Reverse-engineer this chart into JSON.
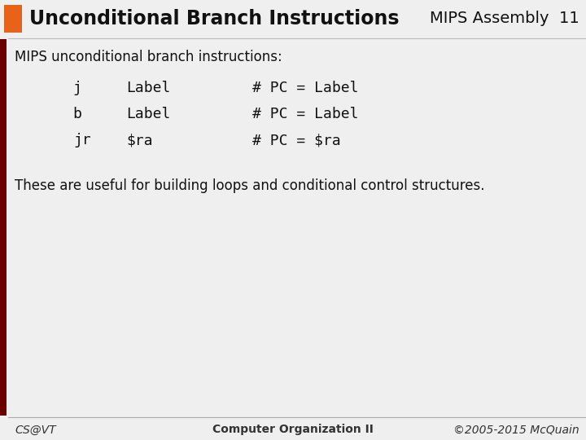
{
  "title": "Unconditional Branch Instructions",
  "subtitle": "MIPS Assembly  11",
  "orange_rect_color": "#E8621A",
  "dark_red_bar_color": "#6B0000",
  "header_bg_color": "#E8E8E8",
  "body_bg_color": "#EFEFEF",
  "content_bg_color": "#F0F0F0",
  "title_fontsize": 17,
  "subtitle_fontsize": 14,
  "header_text_color": "#111111",
  "body_text_color": "#111111",
  "mono_font": "monospace",
  "sans_font": "DejaVu Sans",
  "intro_text": "MIPS unconditional branch instructions:",
  "code_lines": [
    [
      "j ",
      "Label",
      "# PC = Label"
    ],
    [
      "b ",
      "Label",
      "# PC = Label"
    ],
    [
      "jr",
      "$ra",
      "# PC = $ra  "
    ]
  ],
  "footer_note": "These are useful for building loops and conditional control structures.",
  "footer_left": "CS@VT",
  "footer_center": "Computer Organization II",
  "footer_right": "©2005-2015 McQuain",
  "footer_color": "#333333",
  "footer_fontsize": 10,
  "intro_fontsize": 12,
  "code_fontsize": 13,
  "note_fontsize": 12
}
